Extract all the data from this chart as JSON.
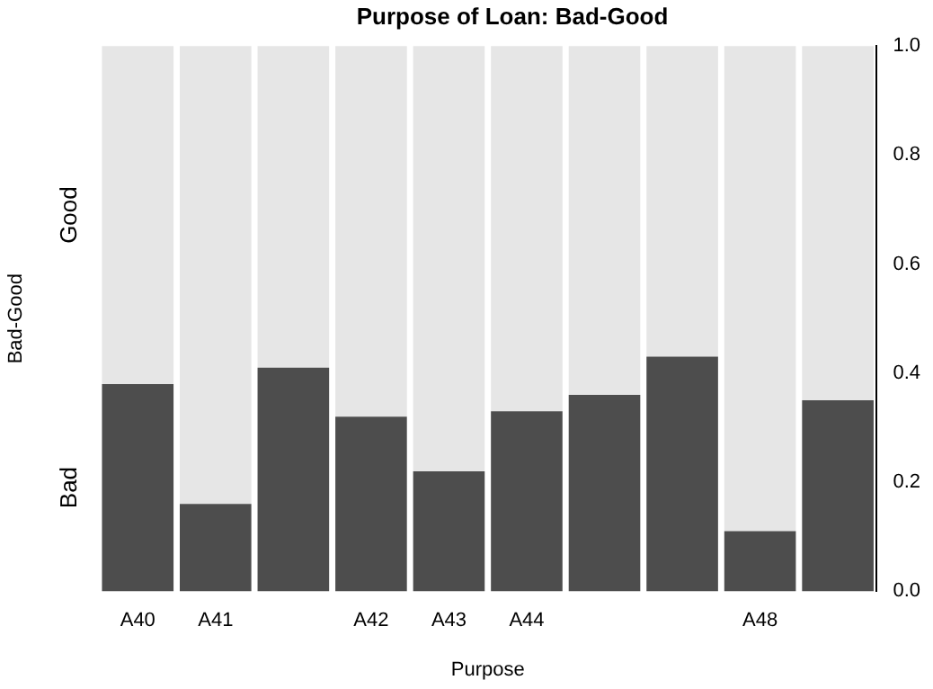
{
  "chart_data": {
    "type": "bar",
    "title": "Purpose of Loan: Bad-Good",
    "xlabel": "Purpose",
    "ylabel": "Bad-Good",
    "stacked": true,
    "categories": [
      "A40",
      "A41",
      null,
      "A42",
      "A43",
      "A44",
      null,
      null,
      "A48",
      null
    ],
    "series": [
      {
        "name": "Bad",
        "color": "#4d4d4d",
        "values": [
          0.38,
          0.16,
          0.41,
          0.32,
          0.22,
          0.33,
          0.36,
          0.43,
          0.11,
          0.35
        ]
      },
      {
        "name": "Good",
        "color": "#e6e6e6",
        "values": [
          0.62,
          0.84,
          0.59,
          0.68,
          0.78,
          0.67,
          0.64,
          0.57,
          0.89,
          0.65
        ]
      }
    ],
    "ylim": [
      0,
      1
    ],
    "yticks": [
      {
        "value": 0,
        "label": "0.0"
      },
      0.2,
      0.4,
      0.6,
      0.8,
      {
        "value": 1,
        "label": "1.0"
      }
    ],
    "grid": false,
    "legend": false
  }
}
